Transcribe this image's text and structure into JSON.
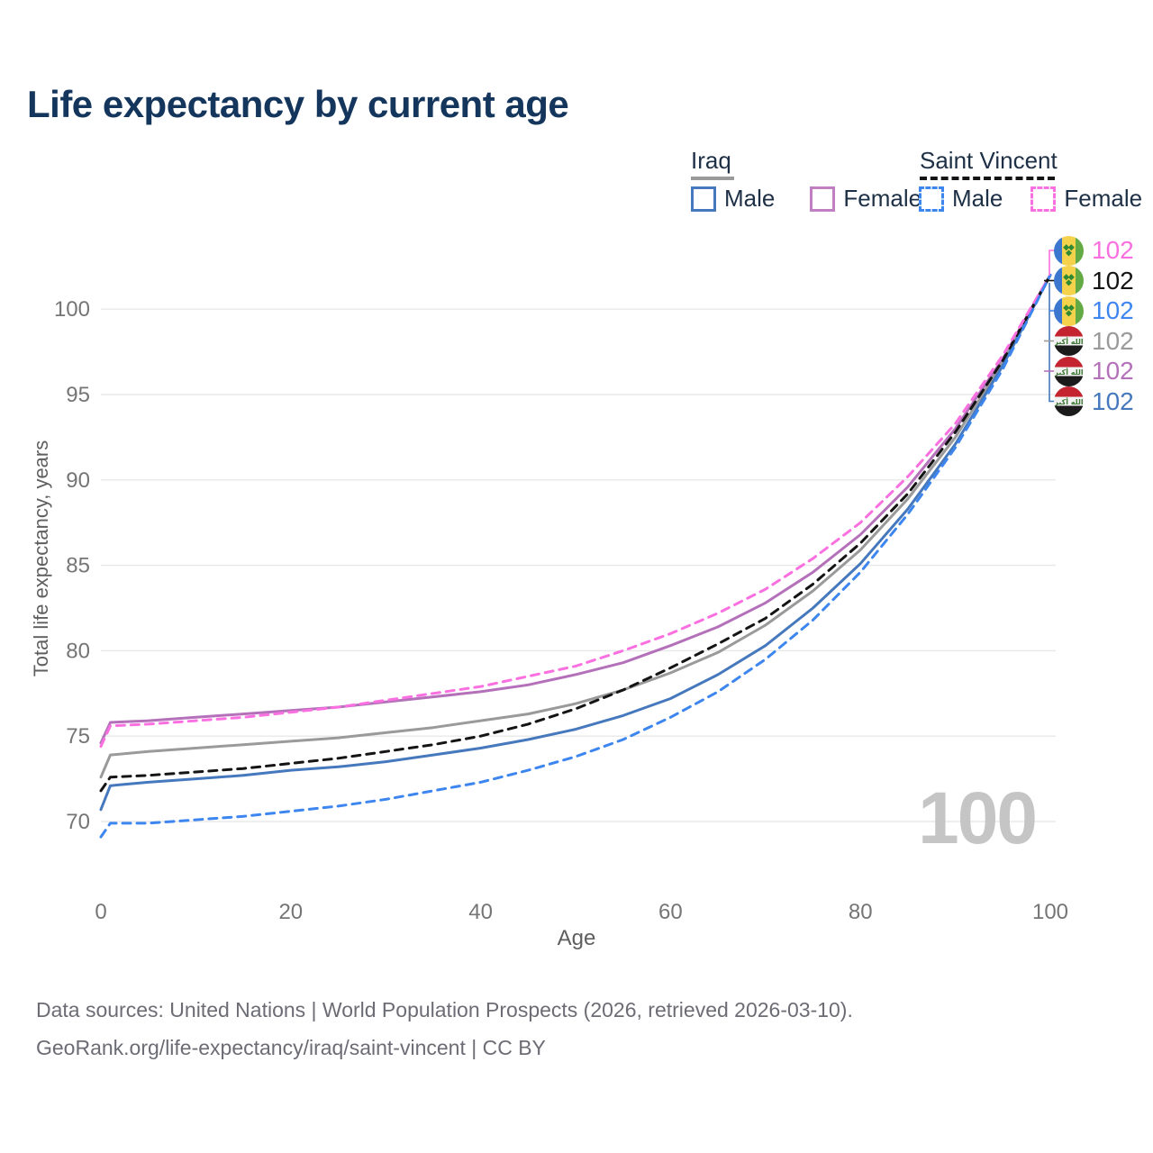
{
  "title": "Life expectancy by current age",
  "legend": {
    "groups": [
      {
        "label": "Iraq",
        "underline_style": "solid",
        "underline_color": "#9a9a9a",
        "items": [
          {
            "label": "Male",
            "color": "#4678bd",
            "dash": false
          },
          {
            "label": "Female",
            "color": "#bf7fc0",
            "dash": false
          }
        ]
      },
      {
        "label": "Saint Vincent",
        "underline_style": "dashed",
        "underline_color": "#141414",
        "items": [
          {
            "label": "Male",
            "color": "#3e86ef",
            "dash": true
          },
          {
            "label": "Female",
            "color": "#fa70e0",
            "dash": true
          }
        ]
      }
    ]
  },
  "chart_data": {
    "type": "line",
    "title": "Life expectancy by current age",
    "xlabel": "Age",
    "ylabel": "Total life expectancy, years",
    "xlim": [
      0,
      100
    ],
    "ylim": [
      66.5,
      103
    ],
    "x_ticks": [
      0,
      20,
      40,
      60,
      80,
      100
    ],
    "y_ticks": [
      70,
      75,
      80,
      85,
      90,
      95,
      100
    ],
    "grid": "horizontal",
    "age_counter": "100",
    "x": [
      0,
      1,
      5,
      10,
      15,
      20,
      25,
      30,
      35,
      40,
      45,
      50,
      55,
      60,
      65,
      70,
      75,
      80,
      85,
      90,
      95,
      100
    ],
    "series": [
      {
        "name": "Iraq Female",
        "country": "iraq",
        "sex": "Female",
        "color": "#b471ba",
        "dash": false,
        "values": [
          74.6,
          75.8,
          75.9,
          76.1,
          76.3,
          76.5,
          76.7,
          77.0,
          77.3,
          77.6,
          78.0,
          78.6,
          79.3,
          80.3,
          81.4,
          82.8,
          84.6,
          86.8,
          89.6,
          93.0,
          97.1,
          102
        ]
      },
      {
        "name": "Iraq",
        "country": "iraq",
        "sex": "All",
        "color": "#9a9a9a",
        "dash": false,
        "values": [
          72.6,
          73.9,
          74.1,
          74.3,
          74.5,
          74.7,
          74.9,
          75.2,
          75.5,
          75.9,
          76.3,
          76.9,
          77.7,
          78.7,
          79.9,
          81.5,
          83.5,
          85.9,
          88.9,
          92.5,
          96.9,
          102
        ]
      },
      {
        "name": "Iraq Male",
        "country": "iraq",
        "sex": "Male",
        "color": "#4678bd",
        "dash": false,
        "values": [
          70.7,
          72.1,
          72.3,
          72.5,
          72.7,
          73.0,
          73.2,
          73.5,
          73.9,
          74.3,
          74.8,
          75.4,
          76.2,
          77.2,
          78.6,
          80.3,
          82.5,
          85.1,
          88.3,
          92.1,
          96.7,
          102
        ]
      },
      {
        "name": "Saint Vincent",
        "country": "saint-vincent",
        "sex": "All",
        "color": "#141414",
        "dash": true,
        "values": [
          71.8,
          72.6,
          72.7,
          72.9,
          73.1,
          73.4,
          73.7,
          74.1,
          74.5,
          75.0,
          75.7,
          76.6,
          77.7,
          79.0,
          80.4,
          81.9,
          83.9,
          86.3,
          89.2,
          92.8,
          97.0,
          102
        ]
      },
      {
        "name": "Saint Vincent Female",
        "country": "saint-vincent",
        "sex": "Female",
        "color": "#fa70e0",
        "dash": true,
        "values": [
          74.4,
          75.6,
          75.7,
          75.9,
          76.1,
          76.4,
          76.7,
          77.1,
          77.5,
          77.9,
          78.5,
          79.1,
          80.0,
          81.0,
          82.2,
          83.6,
          85.4,
          87.5,
          90.2,
          93.3,
          97.3,
          102
        ]
      },
      {
        "name": "Saint Vincent Male",
        "country": "saint-vincent",
        "sex": "Male",
        "color": "#3e86ef",
        "dash": true,
        "values": [
          69.1,
          69.9,
          69.9,
          70.1,
          70.3,
          70.6,
          70.9,
          71.3,
          71.8,
          72.3,
          73.0,
          73.8,
          74.8,
          76.1,
          77.6,
          79.5,
          81.8,
          84.6,
          88.0,
          91.9,
          96.5,
          102
        ]
      }
    ],
    "end_labels": [
      {
        "value": "102",
        "color": "#fa70e0",
        "flag": "saint-vincent",
        "series": "Saint Vincent Female"
      },
      {
        "value": "102",
        "color": "#141414",
        "flag": "saint-vincent",
        "series": "Saint Vincent"
      },
      {
        "value": "102",
        "color": "#3e86ef",
        "flag": "saint-vincent",
        "series": "Saint Vincent Male"
      },
      {
        "value": "102",
        "color": "#9a9a9a",
        "flag": "iraq",
        "series": "Iraq"
      },
      {
        "value": "102",
        "color": "#b471ba",
        "flag": "iraq",
        "series": "Iraq Female"
      },
      {
        "value": "102",
        "color": "#4678bd",
        "flag": "iraq",
        "series": "Iraq Male"
      }
    ]
  },
  "footer": {
    "line1": "Data sources: United Nations | World Population Prospects (2026, retrieved 2026-03-10).",
    "line2": "GeoRank.org/life-expectancy/iraq/saint-vincent | CC BY"
  }
}
